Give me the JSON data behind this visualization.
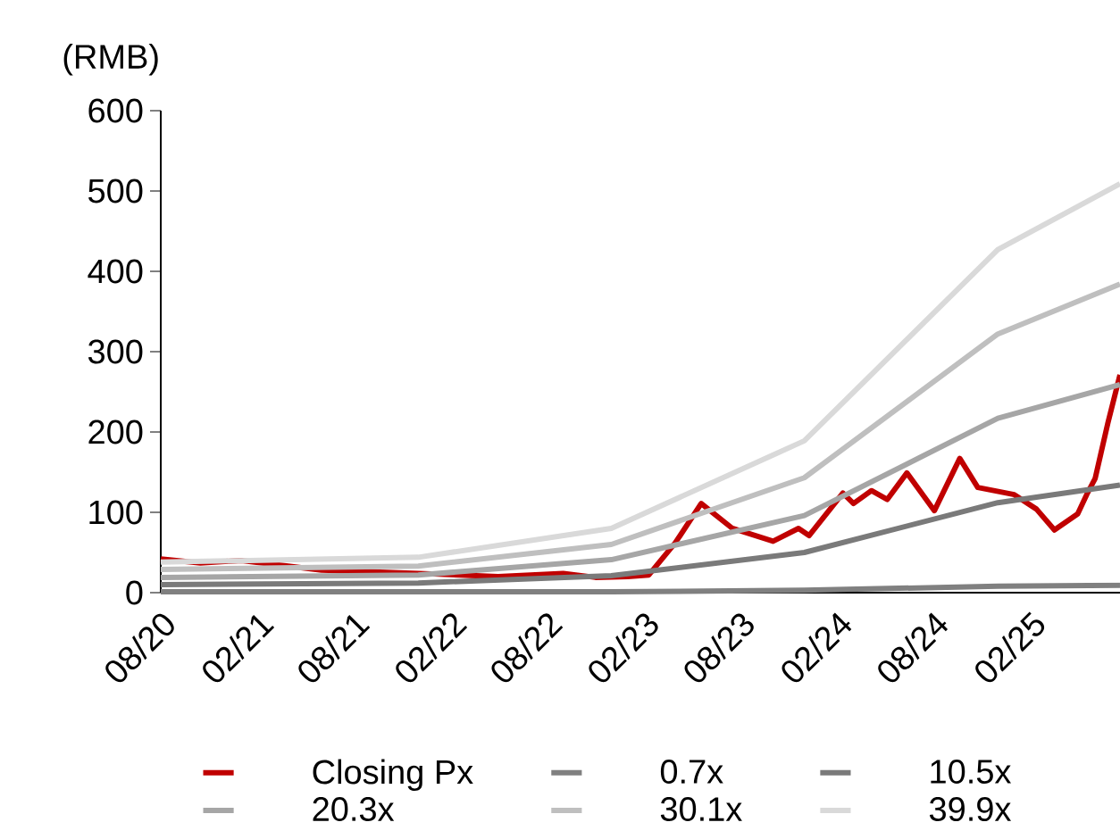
{
  "chart_data": {
    "type": "line",
    "ylabel": "(RMB)",
    "xlim": [
      "2020-08-01",
      "2025-07-20"
    ],
    "xticks": [
      {
        "value": "2020-08-01",
        "label": "08/20"
      },
      {
        "value": "2021-02-01",
        "label": "02/21"
      },
      {
        "value": "2021-08-01",
        "label": "08/21"
      },
      {
        "value": "2022-02-01",
        "label": "02/22"
      },
      {
        "value": "2022-08-01",
        "label": "08/22"
      },
      {
        "value": "2023-02-01",
        "label": "02/23"
      },
      {
        "value": "2023-08-01",
        "label": "08/23"
      },
      {
        "value": "2024-02-01",
        "label": "02/24"
      },
      {
        "value": "2024-08-01",
        "label": "08/24"
      },
      {
        "value": "2025-02-01",
        "label": "02/25"
      }
    ],
    "ylim": [
      0,
      600
    ],
    "yticks": [
      0,
      100,
      200,
      300,
      400,
      500,
      600
    ],
    "legend": "bottom",
    "marker": "none",
    "line_style": "solid",
    "series": [
      {
        "name": "Closing Px",
        "color": "#c00000",
        "x": [
          "2020-08-01",
          "2020-10-15",
          "2021-01-01",
          "2021-06-01",
          "2021-12-01",
          "2022-05-01",
          "2022-09-01",
          "2022-11-01",
          "2023-01-01",
          "2023-02-10",
          "2023-04-01",
          "2023-05-20",
          "2023-07-18",
          "2023-10-03",
          "2023-11-20",
          "2023-12-10",
          "2024-02-12",
          "2024-03-03",
          "2024-04-06",
          "2024-05-06",
          "2024-06-12",
          "2024-08-03",
          "2024-09-20",
          "2024-10-24",
          "2025-01-01",
          "2025-02-12",
          "2025-03-18",
          "2025-05-01",
          "2025-05-18",
          "2025-06-03",
          "2025-06-27",
          "2025-07-20"
        ],
        "values": [
          42,
          37,
          40,
          28,
          24,
          20,
          24,
          19,
          20,
          22,
          62,
          111,
          80,
          64,
          80,
          71,
          124,
          111,
          127,
          116,
          149,
          102,
          167,
          131,
          122,
          104,
          78,
          98,
          122,
          142,
          211,
          271
        ]
      },
      {
        "name": "0.7x",
        "color": "#808080",
        "x": [
          "2020-08-01",
          "2021-12-01",
          "2022-12-01",
          "2023-12-01",
          "2024-12-01",
          "2025-07-20"
        ],
        "values": [
          1,
          1,
          1,
          3,
          8,
          9
        ]
      },
      {
        "name": "10.5x",
        "color": "#7a7a7a",
        "x": [
          "2020-08-01",
          "2021-12-01",
          "2022-12-01",
          "2023-12-01",
          "2024-12-01",
          "2025-07-20"
        ],
        "values": [
          10,
          12,
          21,
          50,
          112,
          134
        ]
      },
      {
        "name": "20.3x",
        "color": "#a6a6a6",
        "x": [
          "2020-08-01",
          "2021-12-01",
          "2022-12-01",
          "2023-12-01",
          "2024-12-01",
          "2025-07-20"
        ],
        "values": [
          19,
          22,
          41,
          96,
          217,
          259
        ]
      },
      {
        "name": "30.1x",
        "color": "#bfbfbf",
        "x": [
          "2020-08-01",
          "2021-12-01",
          "2022-12-01",
          "2023-12-01",
          "2024-12-01",
          "2025-07-20"
        ],
        "values": [
          29,
          33,
          60,
          143,
          322,
          384
        ]
      },
      {
        "name": "39.9x",
        "color": "#d9d9d9",
        "x": [
          "2020-08-01",
          "2021-12-01",
          "2022-12-01",
          "2023-12-01",
          "2024-12-01",
          "2025-07-20"
        ],
        "values": [
          38,
          44,
          80,
          189,
          427,
          509
        ]
      }
    ]
  }
}
